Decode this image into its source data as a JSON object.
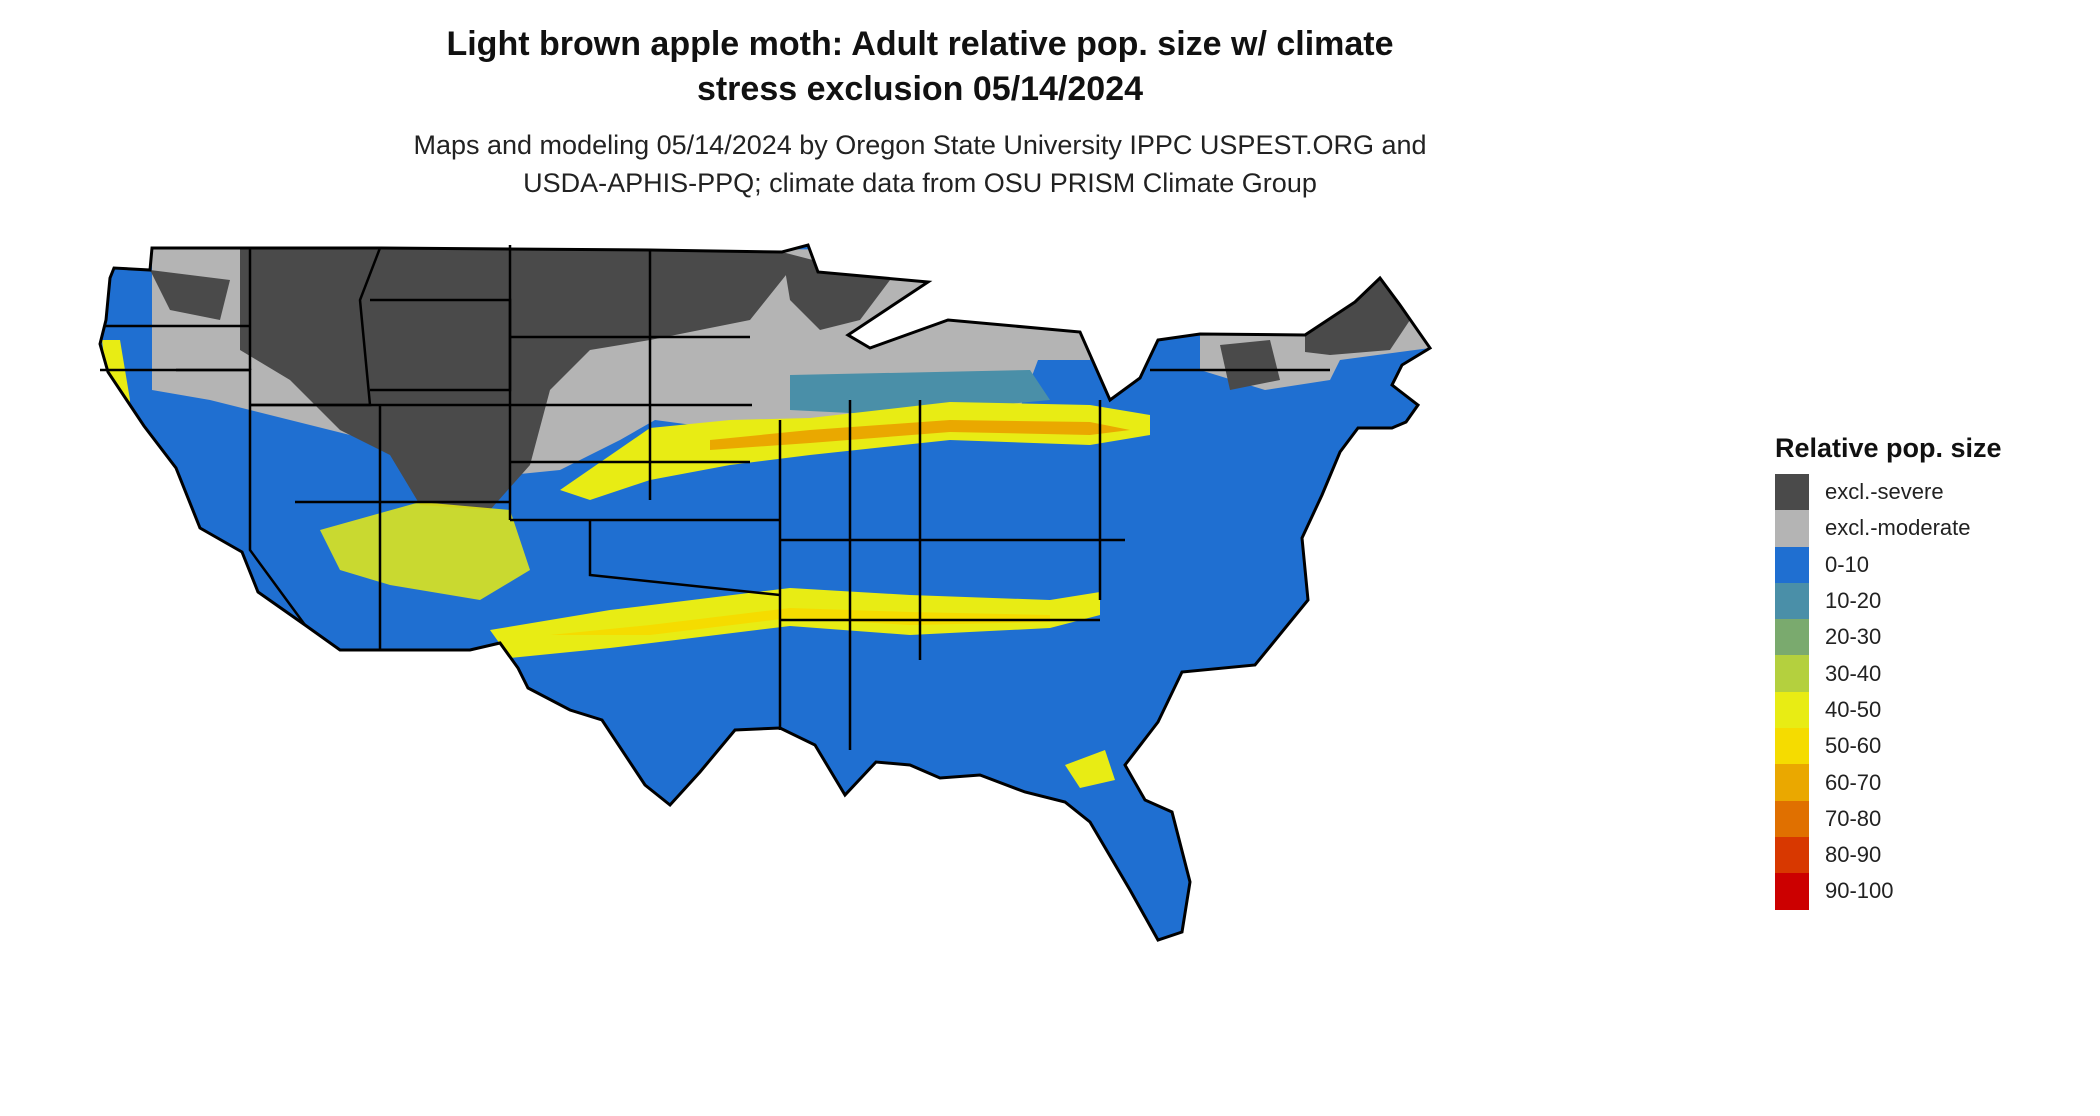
{
  "title": {
    "line1": "Light brown apple moth: Adult relative pop. size w/ climate",
    "line2": "stress exclusion 05/14/2024"
  },
  "subtitle": {
    "line1": "Maps and modeling 05/14/2024 by Oregon State University IPPC USPEST.ORG and",
    "line2": "USDA-APHIS-PPQ; climate data from OSU PRISM Climate Group"
  },
  "legend": {
    "title": "Relative pop. size",
    "items": [
      {
        "label": "excl.-severe",
        "color": "#4a4a4a"
      },
      {
        "label": "excl.-moderate",
        "color": "#b4b4b4"
      },
      {
        "label": "0-10",
        "color": "#1f6fd1"
      },
      {
        "label": "10-20",
        "color": "#4a8fa8"
      },
      {
        "label": "20-30",
        "color": "#7aaa6e"
      },
      {
        "label": "30-40",
        "color": "#b4d03e"
      },
      {
        "label": "40-50",
        "color": "#e8ec14"
      },
      {
        "label": "50-60",
        "color": "#f5dc00"
      },
      {
        "label": "60-70",
        "color": "#eaa800"
      },
      {
        "label": "70-80",
        "color": "#e07000"
      },
      {
        "label": "80-90",
        "color": "#d83800"
      },
      {
        "label": "90-100",
        "color": "#cc0000"
      }
    ]
  },
  "map": {
    "region": "Contiguous United States",
    "style": {
      "border": "#000000",
      "background": "#ffffff"
    }
  }
}
